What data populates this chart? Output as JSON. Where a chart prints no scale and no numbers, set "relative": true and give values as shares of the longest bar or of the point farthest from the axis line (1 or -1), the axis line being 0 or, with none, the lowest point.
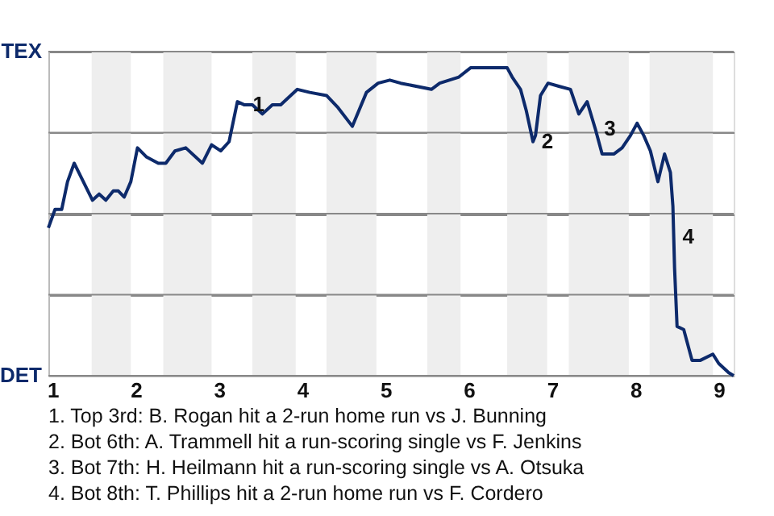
{
  "chart_data": {
    "type": "line",
    "relative": true,
    "x": [
      0.95,
      1.03,
      1.11,
      1.18,
      1.26,
      1.48,
      1.56,
      1.64,
      1.73,
      1.79,
      1.86,
      1.94,
      2.02,
      2.13,
      2.27,
      2.36,
      2.47,
      2.6,
      2.8,
      2.91,
      3.02,
      3.12,
      3.22,
      3.3,
      3.4,
      3.52,
      3.64,
      3.74,
      3.94,
      4.09,
      4.29,
      4.43,
      4.6,
      4.77,
      4.91,
      5.05,
      5.18,
      5.55,
      5.65,
      5.88,
      6.02,
      6.25,
      6.28,
      6.38,
      6.46,
      6.52,
      6.62,
      6.69,
      6.77,
      6.8,
      6.86,
      6.95,
      7.08,
      7.22,
      7.32,
      7.42,
      7.52,
      7.6,
      7.74,
      7.84,
      7.94,
      8.02,
      8.1,
      8.18,
      8.27,
      8.35,
      8.42,
      8.45,
      8.47,
      8.5,
      8.58,
      8.68,
      8.78,
      8.93,
      9.0,
      9.12,
      9.18
    ],
    "series": [
      {
        "color": "#0d2a6b",
        "values": [
          0.48,
          0.54,
          0.54,
          0.63,
          0.69,
          0.57,
          0.59,
          0.57,
          0.6,
          0.6,
          0.58,
          0.63,
          0.74,
          0.71,
          0.69,
          0.69,
          0.73,
          0.74,
          0.69,
          0.75,
          0.73,
          0.76,
          0.89,
          0.88,
          0.88,
          0.85,
          0.88,
          0.88,
          0.93,
          0.92,
          0.91,
          0.87,
          0.81,
          0.92,
          0.95,
          0.96,
          0.95,
          0.93,
          0.95,
          0.97,
          1,
          1,
          1,
          1,
          1,
          0.97,
          0.93,
          0.86,
          0.76,
          0.78,
          0.91,
          0.95,
          0.94,
          0.93,
          0.85,
          0.89,
          0.8,
          0.72,
          0.72,
          0.74,
          0.78,
          0.82,
          0.78,
          0.73,
          0.63,
          0.72,
          0.66,
          0.55,
          0.35,
          0.16,
          0.15,
          0.05,
          0.05,
          0.07,
          0.04,
          0.01,
          0
        ]
      }
    ],
    "xlim": [
      0.95,
      9.18
    ],
    "xticks": [
      1,
      2,
      3,
      4,
      5,
      6,
      7,
      8,
      9
    ],
    "grid": "y",
    "bands": [
      {
        "axis": "x",
        "from": 1.47,
        "to": 1.94,
        "color": "#eeeeee"
      },
      {
        "axis": "x",
        "from": 2.33,
        "to": 2.91,
        "color": "#eeeeee"
      },
      {
        "axis": "x",
        "from": 3.4,
        "to": 3.92,
        "color": "#eeeeee"
      },
      {
        "axis": "x",
        "from": 4.29,
        "to": 4.89,
        "color": "#eeeeee"
      },
      {
        "axis": "x",
        "from": 5.5,
        "to": 5.9,
        "color": "#eeeeee"
      },
      {
        "axis": "x",
        "from": 6.46,
        "to": 6.94,
        "color": "#eeeeee"
      },
      {
        "axis": "x",
        "from": 7.2,
        "to": 7.92,
        "color": "#eeeeee"
      },
      {
        "axis": "x",
        "from": 8.17,
        "to": 8.93,
        "color": "#eeeeee"
      }
    ],
    "annotations": [
      "TEX",
      "DET",
      {
        "text": "1",
        "x": 3.3,
        "y": 0.88
      },
      {
        "text": "2",
        "x": 6.77,
        "y": 0.76
      },
      {
        "text": "3",
        "x": 7.52,
        "y": 0.8
      },
      {
        "text": "4",
        "x": 8.46,
        "y": 0.45
      },
      "1. Top 3rd: B. Rogan hit a 2-run home run vs J. Bunning",
      "2. Bot 6th: A. Trammell hit a run-scoring single vs F. Jenkins",
      "3. Bot 7th: H. Heilmann hit a run-scoring single vs A. Otsuka",
      "4. Bot 8th: T. Phillips hit a 2-run home run vs F. Cordero"
    ]
  }
}
